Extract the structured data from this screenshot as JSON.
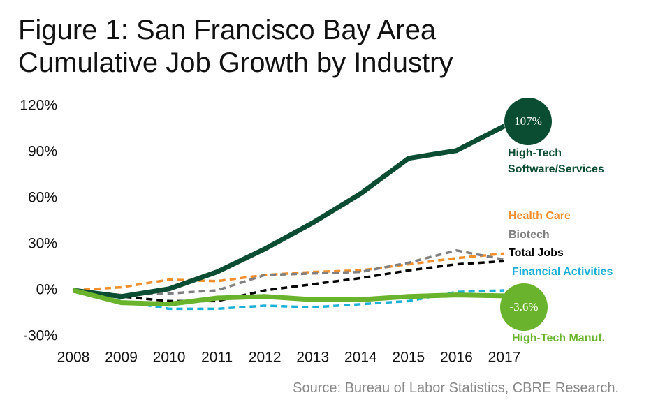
{
  "chart_data": {
    "type": "line",
    "title": "Figure 1: San Francisco Bay Area Cumulative Job Growth by Industry",
    "source": "Source: Bureau of Labor Statistics, CBRE Research.",
    "categories": [
      "2008",
      "2009",
      "2010",
      "2011",
      "2012",
      "2013",
      "2014",
      "2015",
      "2016",
      "2017"
    ],
    "ylim": [
      -30,
      120
    ],
    "yticks": [
      {
        "value": -30,
        "label": "-30%"
      },
      {
        "value": 0,
        "label": "0%"
      },
      {
        "value": 30,
        "label": "30%"
      },
      {
        "value": 60,
        "label": "60%"
      },
      {
        "value": 90,
        "label": "90%"
      },
      {
        "value": 120,
        "label": "120%"
      }
    ],
    "series": [
      {
        "name": "High-Tech Software/Services",
        "color": "#0b4d32",
        "dashed": false,
        "values": [
          0,
          -4,
          1,
          12,
          27,
          44,
          63,
          86,
          91,
          107
        ],
        "value_labels": [
          null,
          null,
          null,
          null,
          null,
          null,
          null,
          null,
          null,
          "107%"
        ]
      },
      {
        "name": "Health Care",
        "color": "#f28e2b",
        "dashed": true,
        "values": [
          0,
          2,
          7,
          6,
          10,
          12,
          13,
          17,
          21,
          24
        ]
      },
      {
        "name": "Biotech",
        "color": "#808080",
        "dashed": true,
        "values": [
          0,
          -3,
          -2,
          0,
          10,
          11,
          12,
          18,
          26,
          20
        ]
      },
      {
        "name": "Total Jobs",
        "color": "#000000",
        "dashed": true,
        "values": [
          0,
          -4,
          -7,
          -7,
          0,
          4,
          8,
          13,
          17,
          19
        ]
      },
      {
        "name": "Financial Activities",
        "color": "#1ab0d8",
        "dashed": true,
        "values": [
          0,
          -7,
          -12,
          -12,
          -10,
          -11,
          -9,
          -7,
          -1,
          0
        ]
      },
      {
        "name": "High-Tech Manuf.",
        "color": "#6ab42d",
        "dashed": false,
        "values": [
          0,
          -8,
          -9,
          -5,
          -4,
          -6,
          -6,
          -4,
          -3,
          -3.6
        ],
        "value_labels": [
          null,
          null,
          null,
          null,
          null,
          null,
          null,
          null,
          null,
          "-3.6%"
        ]
      }
    ]
  }
}
